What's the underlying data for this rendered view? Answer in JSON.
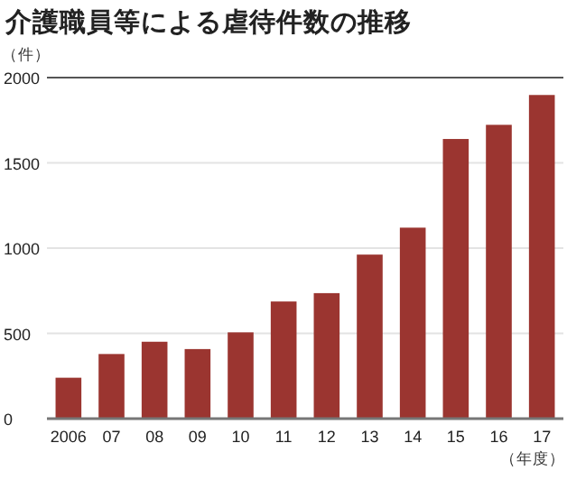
{
  "chart_data": {
    "type": "bar",
    "title": "介護職員等による虐待件数の推移",
    "ylabel": "（件）",
    "xlabel": "（年度）",
    "categories": [
      "2006",
      "07",
      "08",
      "09",
      "10",
      "11",
      "12",
      "13",
      "14",
      "15",
      "16",
      "17"
    ],
    "values": [
      240,
      379,
      451,
      408,
      506,
      687,
      736,
      962,
      1120,
      1640,
      1723,
      1898
    ],
    "color": "#9b3530",
    "ylim": [
      0,
      2000
    ],
    "yticks": [
      0,
      500,
      1000,
      1500,
      2000
    ],
    "grid": "y"
  }
}
